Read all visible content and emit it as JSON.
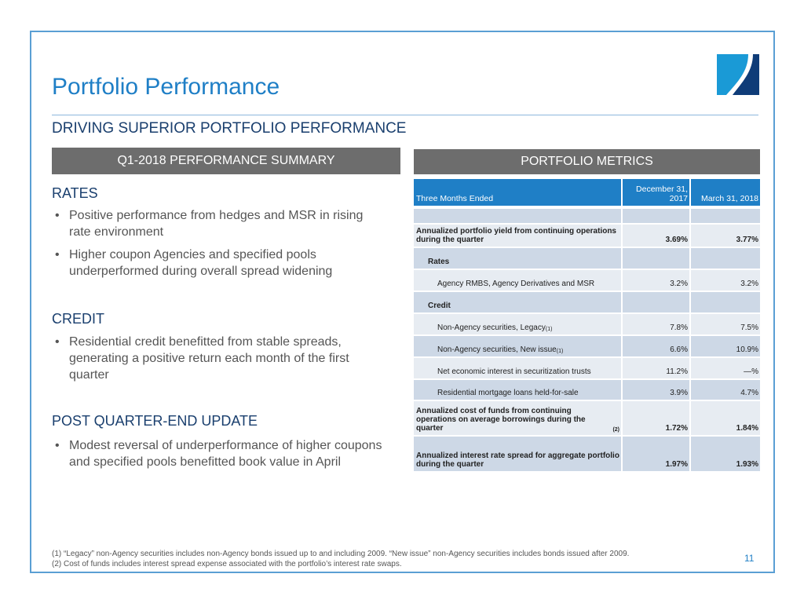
{
  "title": "Portfolio Performance",
  "subtitle": "DRIVING SUPERIOR PORTFOLIO PERFORMANCE",
  "left_header": "Q1-2018 PERFORMANCE SUMMARY",
  "right_header": "PORTFOLIO METRICS",
  "sections": {
    "rates": {
      "heading": "RATES",
      "bullets": [
        "Positive performance from hedges and MSR in rising rate environment",
        "Higher coupon Agencies and specified pools underperformed during overall spread widening"
      ]
    },
    "credit": {
      "heading": "CREDIT",
      "bullets": [
        "Residential credit benefitted from stable spreads, generating a positive return each month of the first quarter"
      ]
    },
    "post": {
      "heading": "POST QUARTER-END UPDATE",
      "bullets": [
        "Modest reversal of underperformance of higher coupons and specified pools benefitted book value in April"
      ]
    }
  },
  "bullet_glyph": "•",
  "table": {
    "header": {
      "label": "Three Months Ended",
      "col1": "December 31, 2017",
      "col2": "March 31, 2018"
    },
    "rows": [
      {
        "label": "",
        "v1": "",
        "v2": ""
      },
      {
        "label": "Annualized portfolio yield from continuing operations during the quarter",
        "v1": "3.69%",
        "v2": "3.77%"
      },
      {
        "label": "Rates",
        "v1": "",
        "v2": ""
      },
      {
        "label": "Agency RMBS, Agency Derivatives and MSR",
        "v1": "3.2%",
        "v2": "3.2%"
      },
      {
        "label": "Credit",
        "v1": "",
        "v2": ""
      },
      {
        "label": "Non-Agency securities, Legacy",
        "sup": "(1)",
        "v1": "7.8%",
        "v2": "7.5%"
      },
      {
        "label": "Non-Agency securities, New issue",
        "sup": "(1)",
        "v1": "6.6%",
        "v2": "10.9%"
      },
      {
        "label": "Net economic interest in securitization trusts",
        "v1": "11.2%",
        "v2": "—%"
      },
      {
        "label": "Residential mortgage loans held-for-sale",
        "v1": "3.9%",
        "v2": "4.7%"
      },
      {
        "label": "Annualized cost of funds from continuing operations on average borrowings during the quarter",
        "sup": "(2)",
        "v1": "1.72%",
        "v2": "1.84%"
      },
      {
        "label": "Annualized interest rate spread for aggregate portfolio during the quarter",
        "v1": "1.97%",
        "v2": "1.93%"
      }
    ]
  },
  "footnotes": [
    "(1)  “Legacy” non-Agency securities includes non-Agency bonds issued up to and including 2009.  “New issue” non-Agency securities includes bonds issued after 2009.",
    "(2)  Cost of funds includes interest spread expense associated with the portfolio’s interest rate swaps."
  ],
  "page_number": "11"
}
